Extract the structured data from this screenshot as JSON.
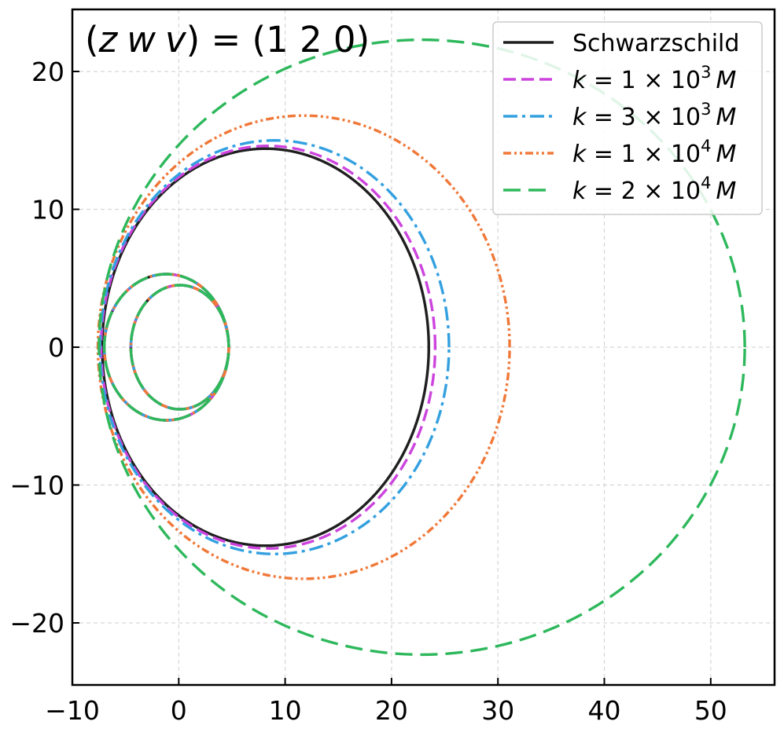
{
  "chart_data": {
    "type": "line",
    "title": "(z w v) = (1 2 0)",
    "title_parts": {
      "open": "(",
      "z": "z",
      "w": "w",
      "v": "v",
      "close_eq": ") = (1 2 0)"
    },
    "xlabel": "",
    "ylabel": "",
    "xlim": [
      -10,
      56
    ],
    "ylim": [
      -24.5,
      24.5
    ],
    "x_ticks": [
      -10,
      0,
      10,
      20,
      30,
      40,
      50
    ],
    "x_tick_labels": [
      "−10",
      "0",
      "10",
      "20",
      "30",
      "40",
      "50"
    ],
    "y_ticks": [
      -20,
      -10,
      0,
      10,
      20
    ],
    "y_tick_labels": [
      "−20",
      "−10",
      "0",
      "10",
      "20"
    ],
    "grid": true,
    "legend_placement": "top-right",
    "series": [
      {
        "name": "Schwarzschild",
        "legend": {
          "type": "plain",
          "text": "Schwarzschild"
        },
        "color": "#1f1f1f",
        "dash": "solid",
        "outer": {
          "x_min": -7.2,
          "x_max": 23.5,
          "y_max": 14.4
        },
        "inner": {
          "x_min": -4.5,
          "x_max": 4.7,
          "y_max": 4.5
        },
        "mid": {
          "x_min": -7.0,
          "x_max": 4.7,
          "y_max": 5.3
        }
      },
      {
        "name": "k = 1 × 10^3 M",
        "legend": {
          "type": "k",
          "prefix": "k",
          "eq": " = ",
          "mant": "1 × 10",
          "exp": "3",
          "unit": "M"
        },
        "color": "#cc44dd",
        "dash": "dashed",
        "outer": {
          "x_min": -7.3,
          "x_max": 24.1,
          "y_max": 14.6
        },
        "inner": {
          "x_min": -4.5,
          "x_max": 4.7,
          "y_max": 4.5
        },
        "mid": {
          "x_min": -7.0,
          "x_max": 4.7,
          "y_max": 5.3
        }
      },
      {
        "name": "k = 3 × 10^3 M",
        "legend": {
          "type": "k",
          "prefix": "k",
          "eq": " = ",
          "mant": "3 × 10",
          "exp": "3",
          "unit": "M"
        },
        "color": "#33a0e0",
        "dash": "dashdot",
        "outer": {
          "x_min": -7.4,
          "x_max": 25.4,
          "y_max": 15.0
        },
        "inner": {
          "x_min": -4.5,
          "x_max": 4.7,
          "y_max": 4.5
        },
        "mid": {
          "x_min": -7.0,
          "x_max": 4.7,
          "y_max": 5.3
        }
      },
      {
        "name": "k = 1 × 10^4 M",
        "legend": {
          "type": "k",
          "prefix": "k",
          "eq": " = ",
          "mant": "1 × 10",
          "exp": "4",
          "unit": "M"
        },
        "color": "#f07838",
        "dash": "dashdotdot",
        "outer": {
          "x_min": -7.6,
          "x_max": 31.1,
          "y_max": 16.8
        },
        "inner": {
          "x_min": -4.5,
          "x_max": 4.7,
          "y_max": 4.5
        },
        "mid": {
          "x_min": -7.0,
          "x_max": 4.7,
          "y_max": 5.3
        }
      },
      {
        "name": "k = 2 × 10^4 M",
        "legend": {
          "type": "k",
          "prefix": "k",
          "eq": " = ",
          "mant": "2 × 10",
          "exp": "4",
          "unit": "M"
        },
        "color": "#2eb85c",
        "dash": "longdash",
        "outer": {
          "x_min": -7.5,
          "x_max": 53.2,
          "y_max": 22.3
        },
        "inner": {
          "x_min": -4.5,
          "x_max": 4.7,
          "y_max": 4.5
        },
        "mid": {
          "x_min": -7.0,
          "x_max": 4.7,
          "y_max": 5.3
        }
      }
    ]
  }
}
